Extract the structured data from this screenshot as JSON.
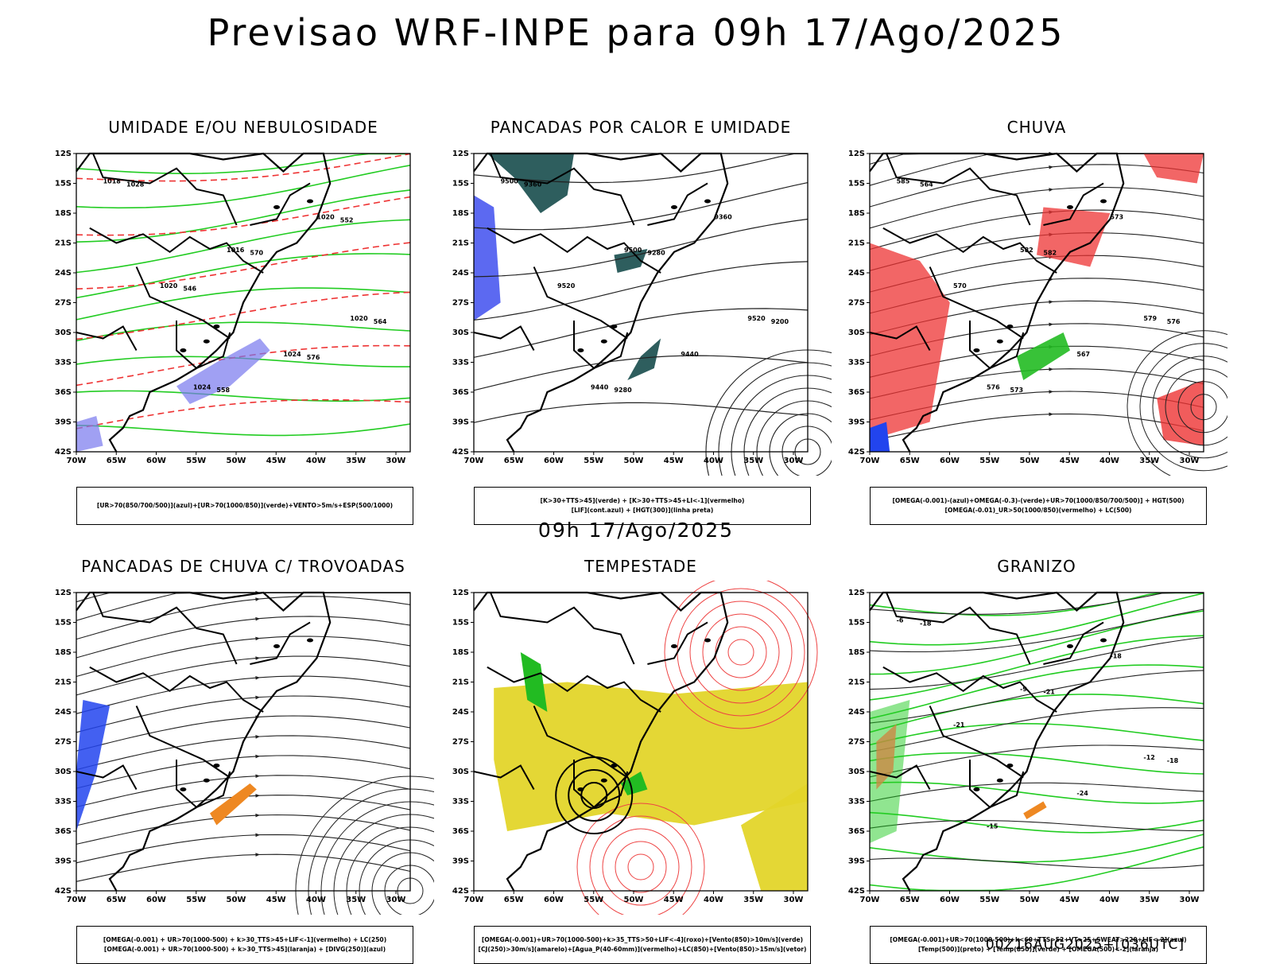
{
  "header": {
    "title": "Previsao WRF-INPE  para 09h 17/Ago/2025"
  },
  "mid_title": "09h 17/Ago/2025",
  "footer_stamp": "00Z16AUG2025+[036UTC]",
  "axes": {
    "lat_ticks": [
      "12S",
      "15S",
      "18S",
      "21S",
      "24S",
      "27S",
      "30S",
      "33S",
      "36S",
      "39S",
      "42S"
    ],
    "lon_ticks": [
      "70W",
      "65W",
      "60W",
      "55W",
      "50W",
      "45W",
      "40W",
      "35W",
      "30W"
    ]
  },
  "panels": [
    {
      "id": "umidade",
      "title": "UMIDADE E/OU NEBULOSIDADE",
      "legend": [
        "[UR>70(850/700/500)](azul)+[UR>70(1000/850)](verde)+VENTO>5m/s+ESP(500/1000)"
      ],
      "labels": [
        "1018",
        "1016",
        "1020",
        "1024",
        "1020",
        "1020",
        "1024",
        "1028",
        "570",
        "564",
        "558",
        "552",
        "546",
        "576"
      ]
    },
    {
      "id": "pancadas-calor",
      "title": "PANCADAS POR CALOR E UMIDADE",
      "legend": [
        "[K>30+TTS>45](verde) + [K>30+TTS>45+LI<-1](vermelho)",
        "[LIF](cont.azul) + [HGT(300)](linha preta)"
      ],
      "labels": [
        "9500",
        "9500",
        "9520",
        "9440",
        "9360",
        "9520",
        "9440",
        "9360",
        "9280",
        "9200",
        "9280"
      ]
    },
    {
      "id": "chuva",
      "title": "CHUVA",
      "legend": [
        "[OMEGA(-0.001)-(azul)+OMEGA(-0.3)-(verde)+UR>70(1000/850/700/500)] + HGT(500)",
        "[OMEGA(-0.01)_UR>50(1000/850)(vermelho) + LC(500)"
      ],
      "labels": [
        "585",
        "582",
        "579",
        "576",
        "573",
        "570",
        "567",
        "564",
        "582",
        "576",
        "573"
      ]
    },
    {
      "id": "pancadas-trovoadas",
      "title": "PANCADAS DE CHUVA C/ TROVOADAS",
      "legend": [
        "[OMEGA(-0.001) + UR>70(1000-500) + k>30_TTS>45+LIF<-1](vermelho) + LC(250)",
        "[OMEGA(-0.001) + UR>70(1000-500) + k>30_TTS>45](laranja) + [DIVG(250)](azul)"
      ],
      "labels": []
    },
    {
      "id": "tempestade",
      "title": "TEMPESTADE",
      "legend": [
        "[OMEGA(-0.001)+UR>70(1000-500)+k>35_TTS>50+LIF<-4](roxo)+[Vento(850)>10m/s](verde)",
        "[CJ(250)>30m/s](amarelo)+[Agua_P(40-60mm)](vermelho)+LC(850)+[Vento(850)>15m/s](vetor)"
      ],
      "labels": []
    },
    {
      "id": "granizo",
      "title": "GRANIZO",
      "legend": [
        "[OMEGA(-0.001)+UR>70(1000-500)+k<60+TTS>52+VT>25+SWEAT>220+LIF<-2](azul)",
        "[Temp(500)](preto) + [Temp(850)](verde) + [OMEGA(500)<-2](laranja)"
      ],
      "labels": [
        "-6",
        "-9",
        "-12",
        "-15",
        "-18",
        "-21",
        "-24",
        "-18",
        "-21",
        "-18"
      ]
    }
  ]
}
